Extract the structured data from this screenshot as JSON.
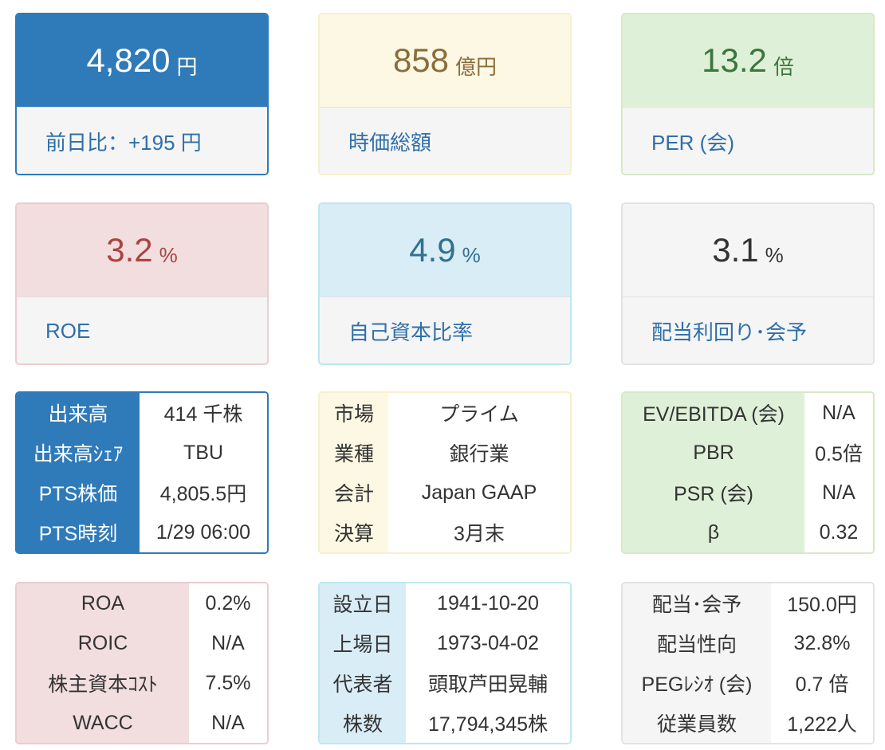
{
  "cards": [
    {
      "value": "4,820",
      "unit": "円",
      "label": "前日比：+195 円"
    },
    {
      "value": "858",
      "unit": "億円",
      "label": "時価総額"
    },
    {
      "value": "13.2",
      "unit": "倍",
      "label": "PER (会)"
    },
    {
      "value": "3.2",
      "unit": "%",
      "label": "ROE"
    },
    {
      "value": "4.9",
      "unit": "%",
      "label": "自己資本比率"
    },
    {
      "value": "3.1",
      "unit": "%",
      "label": "配当利回り･会予"
    }
  ],
  "tables": [
    {
      "rows": [
        {
          "label": "出来高",
          "value": "414 千株"
        },
        {
          "label": "出来高ｼｪｱ",
          "value": "TBU"
        },
        {
          "label": "PTS株価",
          "value": "4,805.5円"
        },
        {
          "label": "PTS時刻",
          "value": "1/29 06:00"
        }
      ]
    },
    {
      "rows": [
        {
          "label": "市場",
          "value": "プライム"
        },
        {
          "label": "業種",
          "value": "銀行業"
        },
        {
          "label": "会計",
          "value": "Japan GAAP"
        },
        {
          "label": "決算",
          "value": "3月末"
        }
      ]
    },
    {
      "rows": [
        {
          "label": "EV/EBITDA (会)",
          "value": "N/A"
        },
        {
          "label": "PBR",
          "value": "0.5倍"
        },
        {
          "label": "PSR (会)",
          "value": "N/A"
        },
        {
          "label": "β",
          "value": "0.32"
        }
      ]
    },
    {
      "rows": [
        {
          "label": "ROA",
          "value": "0.2%"
        },
        {
          "label": "ROIC",
          "value": "N/A"
        },
        {
          "label": "株主資本ｺｽﾄ",
          "value": "7.5%"
        },
        {
          "label": "WACC",
          "value": "N/A"
        }
      ]
    },
    {
      "rows": [
        {
          "label": "設立日",
          "value": "1941-10-20"
        },
        {
          "label": "上場日",
          "value": "1973-04-02"
        },
        {
          "label": "代表者",
          "value": "頭取芦田晃輔"
        },
        {
          "label": "株数",
          "value": "17,794,345株"
        }
      ]
    },
    {
      "rows": [
        {
          "label": "配当･会予",
          "value": "150.0円"
        },
        {
          "label": "配当性向",
          "value": "32.8%"
        },
        {
          "label": "PEGﾚｼｵ (会)",
          "value": "0.7 倍"
        },
        {
          "label": "従業員数",
          "value": "1,222人"
        }
      ]
    }
  ]
}
